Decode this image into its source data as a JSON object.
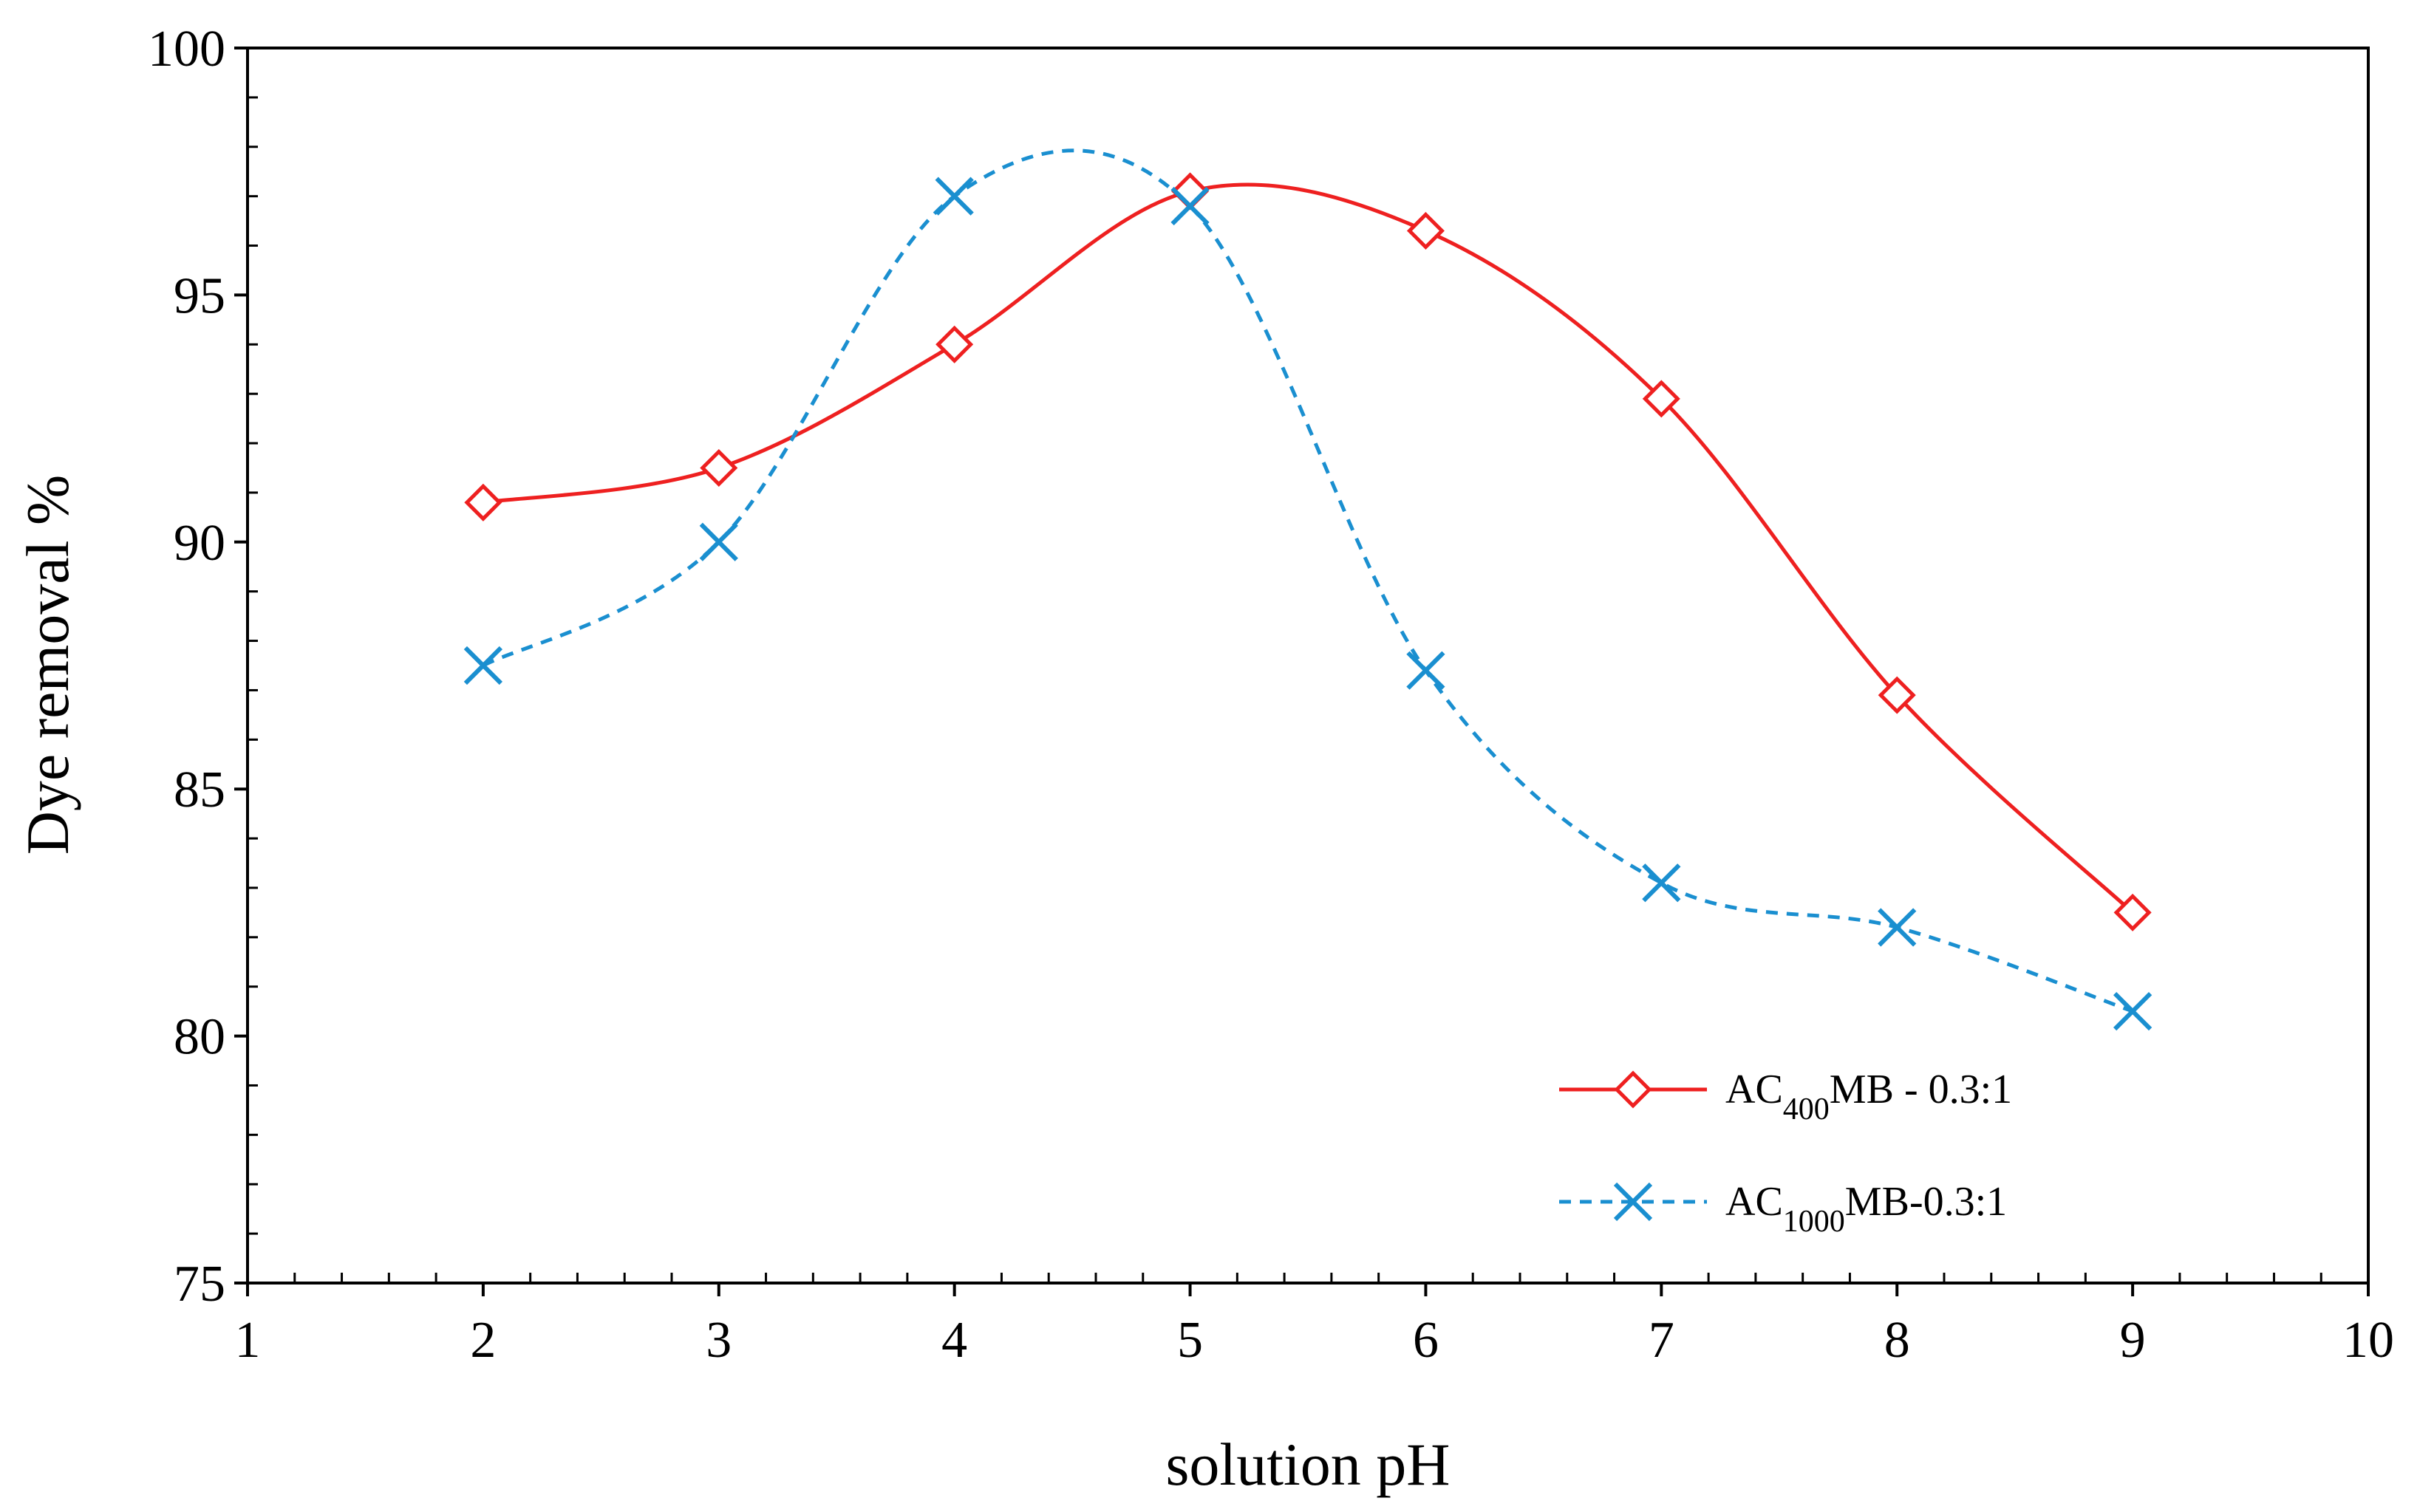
{
  "chart_data": {
    "type": "line",
    "title": "",
    "xlabel": "solution pH",
    "ylabel": "Dye removal %",
    "xlim": [
      1,
      10
    ],
    "ylim": [
      75,
      100
    ],
    "xticks": [
      "1",
      "2",
      "3",
      "4",
      "5",
      "6",
      "7",
      "8",
      "9",
      "10"
    ],
    "yticks": [
      "75",
      "80",
      "85",
      "90",
      "95",
      "100"
    ],
    "grid": false,
    "legend_position": "bottom-right",
    "series": [
      {
        "name": "AC400MB - 0.3:1",
        "legend_main": "AC",
        "legend_sub": "400",
        "legend_rest": "MB - 0.3:1",
        "color": "#ee2020",
        "line_style": "solid",
        "marker": "diamond",
        "x": [
          2,
          3,
          4,
          5,
          6,
          7,
          8,
          9
        ],
        "values": [
          90.8,
          91.5,
          94.0,
          97.1,
          96.3,
          92.9,
          86.9,
          82.5
        ]
      },
      {
        "name": "AC1000MB-0.3:1",
        "legend_main": "AC",
        "legend_sub": "1000",
        "legend_rest": "MB-0.3:1",
        "color": "#1a8fd0",
        "line_style": "dashed",
        "marker": "x",
        "x": [
          2,
          3,
          4,
          5,
          6,
          7,
          8,
          9
        ],
        "values": [
          87.5,
          90.0,
          97.0,
          96.8,
          87.4,
          83.1,
          82.2,
          80.5
        ]
      }
    ]
  }
}
